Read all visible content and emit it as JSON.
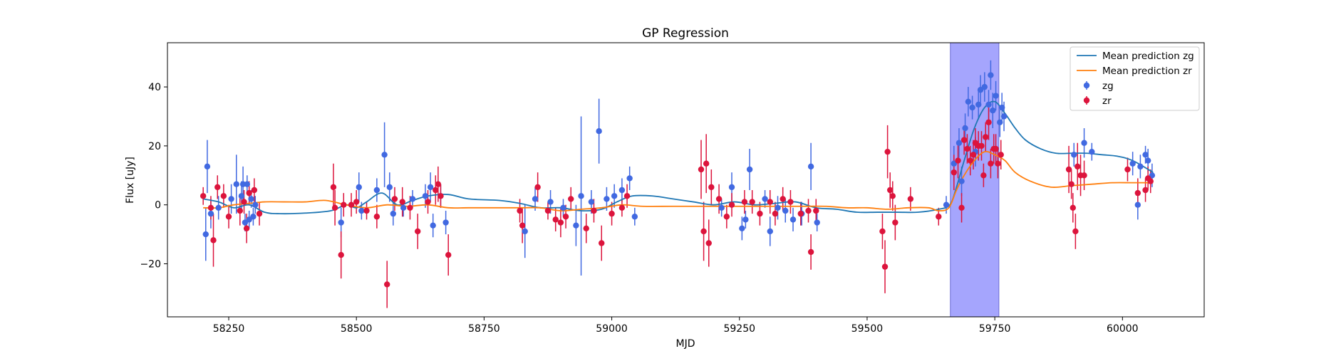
{
  "chart_data": {
    "type": "scatter",
    "title": "GP Regression",
    "xlabel": "MJD",
    "ylabel": "Flux [uJy]",
    "xlim": [
      58130,
      60160
    ],
    "ylim": [
      -38,
      55
    ],
    "xticks": [
      58250,
      58500,
      58750,
      59000,
      59250,
      59500,
      59750,
      60000
    ],
    "xtick_labels": [
      "58250",
      "58500",
      "58750",
      "59000",
      "59250",
      "59500",
      "59750",
      "60000"
    ],
    "yticks": [
      -20,
      0,
      20,
      40
    ],
    "ytick_labels": [
      "−20",
      "0",
      "20",
      "40"
    ],
    "grid": false,
    "legend_position": "top-right",
    "highlight_band": {
      "x0": 59663,
      "x1": 59758,
      "color": "#a5a5fd"
    },
    "colors": {
      "zg_line": "#1f77b4",
      "zr_line": "#ff7f0e",
      "zg_points": "#4169e1",
      "zr_points": "#dc143c"
    },
    "legend": [
      {
        "label": "Mean prediction zg",
        "kind": "line",
        "color": "#1f77b4"
      },
      {
        "label": "Mean prediction zr",
        "kind": "line",
        "color": "#ff7f0e"
      },
      {
        "label": "zg",
        "kind": "errorbar",
        "color": "#4169e1"
      },
      {
        "label": "zr",
        "kind": "errorbar",
        "color": "#dc143c"
      }
    ],
    "mean_lines": [
      {
        "name": "Mean prediction zg",
        "color": "#1f77b4",
        "x": [
          58200,
          58230,
          58260,
          58290,
          58320,
          58350,
          58400,
          58450,
          58480,
          58500,
          58520,
          58550,
          58580,
          58610,
          58640,
          58680,
          58720,
          58780,
          58820,
          58860,
          58900,
          58940,
          58980,
          59010,
          59040,
          59080,
          59120,
          59160,
          59200,
          59240,
          59280,
          59320,
          59360,
          59400,
          59440,
          59480,
          59520,
          59560,
          59600,
          59640,
          59662,
          59675,
          59690,
          59710,
          59730,
          59750,
          59770,
          59790,
          59810,
          59840,
          59870,
          59900,
          59930,
          59960,
          59990,
          60020,
          60060
        ],
        "y": [
          2,
          1,
          -1,
          0,
          -2.5,
          -3,
          -2.8,
          -2,
          0,
          -1,
          1,
          4,
          0,
          1.5,
          3,
          3.5,
          2,
          1.5,
          0.5,
          -1,
          -1,
          -2,
          -1.5,
          1,
          3,
          3,
          2,
          1,
          0,
          1,
          0,
          0.5,
          1,
          -1,
          -1.5,
          -2.5,
          -2.5,
          -2.5,
          -2.5,
          -1.5,
          0,
          6,
          15,
          26,
          33,
          35,
          31,
          26,
          22,
          19,
          17.5,
          17.5,
          17.5,
          17,
          16.5,
          15,
          11
        ]
      },
      {
        "name": "Mean prediction zr",
        "color": "#ff7f0e",
        "x": [
          58200,
          58230,
          58260,
          58290,
          58320,
          58360,
          58400,
          58440,
          58480,
          58520,
          58560,
          58600,
          58640,
          58680,
          58720,
          58780,
          58820,
          58860,
          58900,
          58940,
          58980,
          59020,
          59060,
          59120,
          59180,
          59220,
          59260,
          59300,
          59340,
          59380,
          59420,
          59460,
          59500,
          59540,
          59580,
          59620,
          59640,
          59660,
          59675,
          59690,
          59710,
          59730,
          59750,
          59770,
          59790,
          59820,
          59860,
          59900,
          59940,
          59980,
          60020,
          60060
        ],
        "y": [
          -1,
          -1,
          0,
          0.5,
          1,
          1,
          1,
          1.5,
          0,
          -1,
          0,
          -0.5,
          0,
          -1,
          -1,
          -1,
          -1,
          -1,
          -2,
          -1.5,
          -1,
          0,
          -0.5,
          -0.5,
          -0.5,
          -0.5,
          -0.5,
          -0.5,
          -0.5,
          -0.5,
          -0.5,
          -1,
          -1,
          -1.5,
          -1,
          -1,
          -2,
          -1,
          5,
          10,
          15,
          18,
          17,
          15,
          11,
          8,
          6,
          6.5,
          7,
          7.5,
          7.5,
          7.5
        ]
      }
    ],
    "series": [
      {
        "name": "zg",
        "color": "#4169e1",
        "points": [
          [
            58205,
            -10,
            9
          ],
          [
            58208,
            13,
            9
          ],
          [
            58215,
            -3,
            5
          ],
          [
            58230,
            -1,
            4
          ],
          [
            58255,
            2,
            5
          ],
          [
            58265,
            7,
            10
          ],
          [
            58275,
            3,
            5
          ],
          [
            58278,
            7,
            6
          ],
          [
            58282,
            -6,
            3
          ],
          [
            58286,
            7,
            3
          ],
          [
            58290,
            -5,
            3
          ],
          [
            58294,
            2,
            3
          ],
          [
            58298,
            -4,
            3
          ],
          [
            58302,
            0,
            3
          ],
          [
            58470,
            -6,
            5
          ],
          [
            58505,
            6,
            5
          ],
          [
            58510,
            -2,
            3
          ],
          [
            58540,
            5,
            4
          ],
          [
            58555,
            17,
            11
          ],
          [
            58565,
            6,
            5
          ],
          [
            58572,
            -3,
            4
          ],
          [
            58592,
            -1,
            3
          ],
          [
            58610,
            2,
            3
          ],
          [
            58635,
            3,
            4
          ],
          [
            58645,
            6,
            5
          ],
          [
            58650,
            -7,
            4
          ],
          [
            58665,
            3,
            4
          ],
          [
            58675,
            -6,
            4
          ],
          [
            58830,
            -9,
            9
          ],
          [
            58850,
            2,
            4
          ],
          [
            58880,
            1,
            4
          ],
          [
            58905,
            -1,
            3
          ],
          [
            58930,
            -7,
            7
          ],
          [
            58940,
            3,
            27
          ],
          [
            58960,
            1,
            4
          ],
          [
            58975,
            25,
            11
          ],
          [
            58990,
            2,
            4
          ],
          [
            59005,
            3,
            4
          ],
          [
            59020,
            5,
            4
          ],
          [
            59035,
            9,
            4
          ],
          [
            59045,
            -4,
            3
          ],
          [
            59215,
            -1,
            3
          ],
          [
            59235,
            6,
            5
          ],
          [
            59255,
            -8,
            4
          ],
          [
            59262,
            -5,
            3
          ],
          [
            59270,
            12,
            7
          ],
          [
            59300,
            2,
            3
          ],
          [
            59310,
            -9,
            5
          ],
          [
            59325,
            -1,
            4
          ],
          [
            59340,
            -2,
            4
          ],
          [
            59355,
            -5,
            4
          ],
          [
            59372,
            -3,
            4
          ],
          [
            59390,
            13,
            8
          ],
          [
            59402,
            -6,
            3
          ],
          [
            59655,
            0,
            3
          ],
          [
            59670,
            14,
            6
          ],
          [
            59680,
            21,
            5
          ],
          [
            59685,
            8,
            5
          ],
          [
            59692,
            26,
            5
          ],
          [
            59698,
            35,
            5
          ],
          [
            59706,
            33,
            4
          ],
          [
            59712,
            18,
            5
          ],
          [
            59718,
            34,
            5
          ],
          [
            59722,
            39,
            5
          ],
          [
            59730,
            40,
            5
          ],
          [
            59738,
            34,
            5
          ],
          [
            59742,
            44,
            5
          ],
          [
            59746,
            32,
            6
          ],
          [
            59752,
            37,
            5
          ],
          [
            59760,
            28,
            5
          ],
          [
            59764,
            33,
            5
          ],
          [
            59768,
            30,
            5
          ],
          [
            59905,
            17,
            4
          ],
          [
            59925,
            21,
            5
          ],
          [
            59940,
            18,
            3
          ],
          [
            60020,
            14,
            4
          ],
          [
            60030,
            0,
            5
          ],
          [
            60035,
            13,
            4
          ],
          [
            60045,
            17,
            3
          ],
          [
            60050,
            15,
            4
          ],
          [
            60058,
            10,
            4
          ]
        ]
      },
      {
        "name": "zr",
        "color": "#dc143c",
        "points": [
          [
            58200,
            3,
            3
          ],
          [
            58215,
            -1,
            4
          ],
          [
            58220,
            -12,
            9
          ],
          [
            58228,
            6,
            4
          ],
          [
            58240,
            3,
            4
          ],
          [
            58250,
            -4,
            4
          ],
          [
            58272,
            -2,
            5
          ],
          [
            58280,
            1,
            4
          ],
          [
            58285,
            -8,
            5
          ],
          [
            58290,
            4,
            4
          ],
          [
            58300,
            5,
            4
          ],
          [
            58310,
            -3,
            4
          ],
          [
            58455,
            6,
            8
          ],
          [
            58458,
            -1,
            6
          ],
          [
            58470,
            -17,
            8
          ],
          [
            58475,
            0,
            4
          ],
          [
            58490,
            0,
            4
          ],
          [
            58500,
            1,
            4
          ],
          [
            58520,
            -2,
            3
          ],
          [
            58540,
            -4,
            4
          ],
          [
            58560,
            -27,
            8
          ],
          [
            58575,
            2,
            4
          ],
          [
            58590,
            1,
            5
          ],
          [
            58605,
            -1,
            4
          ],
          [
            58620,
            -9,
            6
          ],
          [
            58640,
            1,
            4
          ],
          [
            58655,
            5,
            5
          ],
          [
            58660,
            7,
            6
          ],
          [
            58665,
            3,
            4
          ],
          [
            58680,
            -17,
            7
          ],
          [
            58820,
            -2,
            4
          ],
          [
            58825,
            -7,
            6
          ],
          [
            58855,
            6,
            5
          ],
          [
            58875,
            -2,
            3
          ],
          [
            58890,
            -5,
            4
          ],
          [
            58900,
            -6,
            5
          ],
          [
            58910,
            -4,
            4
          ],
          [
            58920,
            2,
            4
          ],
          [
            58950,
            -8,
            5
          ],
          [
            58965,
            -2,
            4
          ],
          [
            58980,
            -13,
            6
          ],
          [
            59000,
            -3,
            4
          ],
          [
            59020,
            -1,
            3
          ],
          [
            59030,
            3,
            4
          ],
          [
            59175,
            12,
            10
          ],
          [
            59180,
            -9,
            10
          ],
          [
            59185,
            14,
            10
          ],
          [
            59190,
            -13,
            8
          ],
          [
            59195,
            6,
            6
          ],
          [
            59210,
            2,
            5
          ],
          [
            59225,
            -4,
            4
          ],
          [
            59235,
            0,
            4
          ],
          [
            59260,
            1,
            4
          ],
          [
            59275,
            1,
            4
          ],
          [
            59290,
            -3,
            4
          ],
          [
            59310,
            1,
            4
          ],
          [
            59320,
            -3,
            4
          ],
          [
            59335,
            2,
            4
          ],
          [
            59350,
            1,
            4
          ],
          [
            59370,
            -3,
            4
          ],
          [
            59385,
            -2,
            4
          ],
          [
            59390,
            -16,
            6
          ],
          [
            59400,
            -2,
            4
          ],
          [
            59530,
            -9,
            6
          ],
          [
            59535,
            -21,
            9
          ],
          [
            59540,
            18,
            9
          ],
          [
            59545,
            5,
            6
          ],
          [
            59550,
            3,
            5
          ],
          [
            59555,
            -6,
            6
          ],
          [
            59585,
            2,
            4
          ],
          [
            59640,
            -4,
            3
          ],
          [
            59670,
            11,
            6
          ],
          [
            59678,
            15,
            6
          ],
          [
            59685,
            -1,
            5
          ],
          [
            59690,
            22,
            5
          ],
          [
            59696,
            19,
            5
          ],
          [
            59702,
            15,
            5
          ],
          [
            59708,
            17,
            5
          ],
          [
            59712,
            21,
            5
          ],
          [
            59718,
            20,
            5
          ],
          [
            59724,
            20,
            5
          ],
          [
            59728,
            10,
            4
          ],
          [
            59732,
            23,
            5
          ],
          [
            59738,
            28,
            6
          ],
          [
            59742,
            14,
            5
          ],
          [
            59748,
            19,
            5
          ],
          [
            59752,
            19,
            5
          ],
          [
            59756,
            14,
            5
          ],
          [
            59762,
            17,
            5
          ],
          [
            59895,
            12,
            8
          ],
          [
            59900,
            7,
            5
          ],
          [
            59903,
            -1,
            5
          ],
          [
            59908,
            -9,
            6
          ],
          [
            59912,
            13,
            8
          ],
          [
            59918,
            10,
            7
          ],
          [
            59925,
            10,
            5
          ],
          [
            60010,
            12,
            4
          ],
          [
            60030,
            4,
            5
          ],
          [
            60045,
            5,
            4
          ],
          [
            60050,
            9,
            4
          ],
          [
            60055,
            8,
            4
          ]
        ]
      }
    ]
  }
}
